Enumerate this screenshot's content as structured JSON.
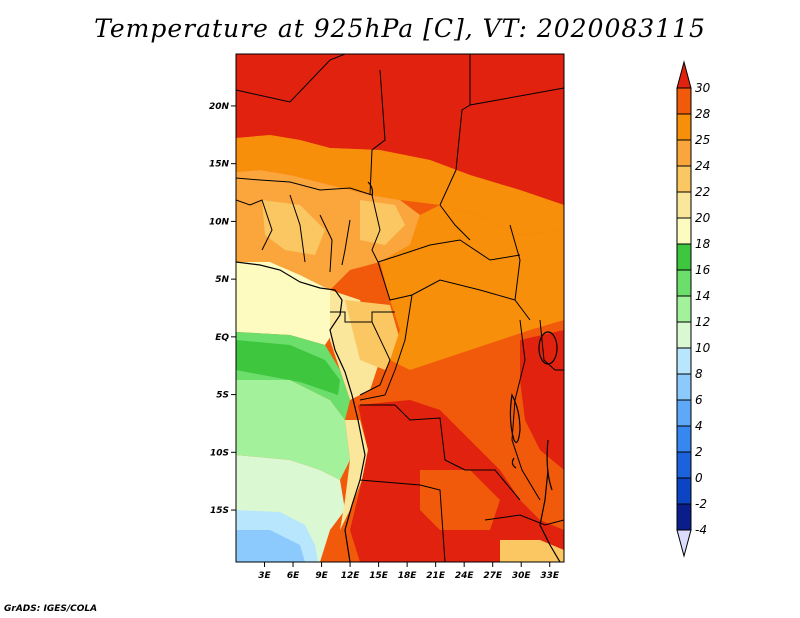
{
  "title": "Temperature at 925hPa [C], VT: 2020083115",
  "credit": "GrADS: IGES/COLA",
  "map": {
    "lon_range": [
      0,
      34.5
    ],
    "lat_range": [
      -19.5,
      24.5
    ],
    "lon_ticks": [
      {
        "value": 3,
        "label": "3E"
      },
      {
        "value": 6,
        "label": "6E"
      },
      {
        "value": 9,
        "label": "9E"
      },
      {
        "value": 12,
        "label": "12E"
      },
      {
        "value": 15,
        "label": "15E"
      },
      {
        "value": 18,
        "label": "18E"
      },
      {
        "value": 21,
        "label": "21E"
      },
      {
        "value": 24,
        "label": "24E"
      },
      {
        "value": 27,
        "label": "27E"
      },
      {
        "value": 30,
        "label": "30E"
      },
      {
        "value": 33,
        "label": "33E"
      }
    ],
    "lat_ticks": [
      {
        "value": 20,
        "label": "20N"
      },
      {
        "value": 15,
        "label": "15N"
      },
      {
        "value": 10,
        "label": "10N"
      },
      {
        "value": 5,
        "label": "5N"
      },
      {
        "value": 0,
        "label": "EQ"
      },
      {
        "value": -5,
        "label": "5S"
      },
      {
        "value": -10,
        "label": "10S"
      },
      {
        "value": -15,
        "label": "15S"
      }
    ]
  },
  "colorbar": {
    "levels": [
      "30",
      "28",
      "25",
      "24",
      "22",
      "20",
      "18",
      "16",
      "14",
      "12",
      "10",
      "8",
      "6",
      "4",
      "2",
      "0",
      "-2",
      "-4"
    ],
    "colors": [
      "#e0220f",
      "#f05a0a",
      "#f88f0b",
      "#fba63c",
      "#fbc762",
      "#fbe79c",
      "#fdfbc0",
      "#3ec63e",
      "#6bde6b",
      "#a4f19c",
      "#daf9d2",
      "#b8e6fd",
      "#8ccafd",
      "#5da9f8",
      "#3787f0",
      "#1b62dc",
      "#0c45c4",
      "#0a1d8a",
      "#08046a"
    ],
    "over_color": "#e0220f",
    "under_color": "#dcdcff"
  }
}
